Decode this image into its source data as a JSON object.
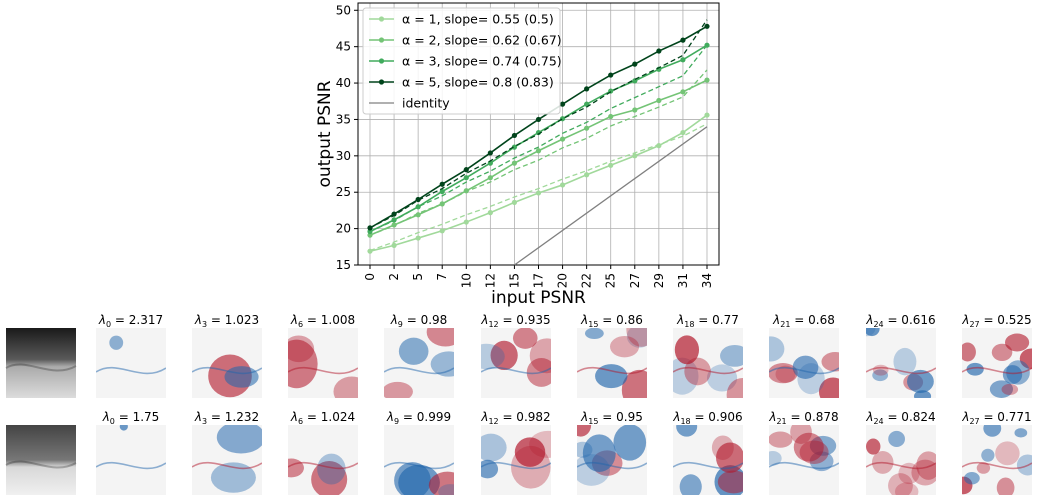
{
  "chart_data": [
    {
      "type": "line",
      "xlabel": "input PSNR",
      "ylabel": "output PSNR",
      "ylim": [
        15,
        51
      ],
      "yticks": [
        15,
        20,
        25,
        30,
        35,
        40,
        45,
        50
      ],
      "x_tick_labels": [
        "0",
        "2",
        "5",
        "7",
        "10",
        "12",
        "15",
        "17",
        "20",
        "22",
        "25",
        "27",
        "29",
        "31",
        "34"
      ],
      "grid": true,
      "legend_position": "top-left",
      "series": [
        {
          "name": "α = 1, slope= 0.55 (0.5)",
          "color": "#a1d99b",
          "values": [
            16.9,
            17.7,
            18.7,
            19.7,
            20.9,
            22.2,
            23.6,
            24.9,
            26.0,
            27.4,
            28.7,
            30.0,
            31.4,
            33.2,
            35.6
          ],
          "fit": [
            17.0,
            18.15,
            19.45,
            20.6,
            21.9,
            23.05,
            24.35,
            25.5,
            26.8,
            27.95,
            29.25,
            30.4,
            31.55,
            32.7,
            34.4
          ]
        },
        {
          "name": "α = 2, slope= 0.62 (0.67)",
          "color": "#74c476",
          "values": [
            19.1,
            20.5,
            21.9,
            23.4,
            25.2,
            27.0,
            29.0,
            30.7,
            32.3,
            33.8,
            35.4,
            36.3,
            37.6,
            38.8,
            40.4
          ],
          "fit": [
            19.1,
            20.4,
            22.1,
            23.4,
            25.1,
            26.4,
            28.1,
            29.4,
            31.1,
            32.4,
            34.1,
            35.4,
            36.7,
            38.1,
            41.8
          ]
        },
        {
          "name": "α = 3, slope= 0.74 (0.75)",
          "color": "#41ab5d",
          "values": [
            19.6,
            21.2,
            23.0,
            25.1,
            27.0,
            29.0,
            31.2,
            33.2,
            35.1,
            37.1,
            38.9,
            40.3,
            41.9,
            43.2,
            45.2
          ],
          "fit": [
            19.6,
            21.1,
            23.0,
            24.5,
            26.4,
            27.9,
            29.7,
            31.2,
            33.1,
            34.6,
            36.5,
            38.0,
            39.5,
            41.0,
            45.2
          ]
        },
        {
          "name": "α = 5, slope= 0.8 (0.83)",
          "color": "#00441b",
          "values": [
            20.1,
            22.0,
            24.0,
            26.1,
            28.1,
            30.4,
            32.8,
            35.0,
            37.1,
            39.2,
            41.1,
            42.6,
            44.4,
            45.9,
            47.8
          ],
          "fit": [
            20.1,
            21.8,
            23.9,
            25.5,
            27.6,
            29.3,
            31.3,
            33.0,
            35.1,
            36.7,
            38.8,
            40.5,
            42.1,
            43.8,
            48.7
          ]
        },
        {
          "name": "identity",
          "color": "#808080",
          "x_span": [
            "15",
            "34"
          ],
          "values_at_span": [
            15,
            34
          ]
        }
      ]
    },
    {
      "type": "other",
      "description_rows": [
        {
          "labels": [
            "λ_0 = 2.317",
            "λ_3 = 1.023",
            "λ_6 = 1.008",
            "λ_9 = 0.98",
            "λ_12 = 0.935",
            "λ_15 = 0.86",
            "λ_18 = 0.77",
            "λ_21 = 0.68",
            "λ_24 = 0.616",
            "λ_27 = 0.525"
          ],
          "label_parts": [
            {
              "sub": "0",
              "val": "2.317"
            },
            {
              "sub": "3",
              "val": "1.023"
            },
            {
              "sub": "6",
              "val": "1.008"
            },
            {
              "sub": "9",
              "val": "0.98"
            },
            {
              "sub": "12",
              "val": "0.935"
            },
            {
              "sub": "15",
              "val": "0.86"
            },
            {
              "sub": "18",
              "val": "0.77"
            },
            {
              "sub": "21",
              "val": "0.68"
            },
            {
              "sub": "24",
              "val": "0.616"
            },
            {
              "sub": "27",
              "val": "0.525"
            }
          ]
        },
        {
          "labels": [
            "λ_0 = 1.75",
            "λ_3 = 1.232",
            "λ_6 = 1.024",
            "λ_9 = 0.999",
            "λ_12 = 0.982",
            "λ_15 = 0.95",
            "λ_18 = 0.906",
            "λ_21 = 0.878",
            "λ_24 = 0.824",
            "λ_27 = 0.771"
          ],
          "label_parts": [
            {
              "sub": "0",
              "val": "1.75"
            },
            {
              "sub": "3",
              "val": "1.232"
            },
            {
              "sub": "6",
              "val": "1.024"
            },
            {
              "sub": "9",
              "val": "0.999"
            },
            {
              "sub": "12",
              "val": "0.982"
            },
            {
              "sub": "15",
              "val": "0.95"
            },
            {
              "sub": "18",
              "val": "0.906"
            },
            {
              "sub": "21",
              "val": "0.878"
            },
            {
              "sub": "24",
              "val": "0.824"
            },
            {
              "sub": "27",
              "val": "0.771"
            }
          ]
        }
      ],
      "colormap": [
        "#2166ac",
        "#f7f7f7",
        "#b2182b"
      ]
    }
  ]
}
